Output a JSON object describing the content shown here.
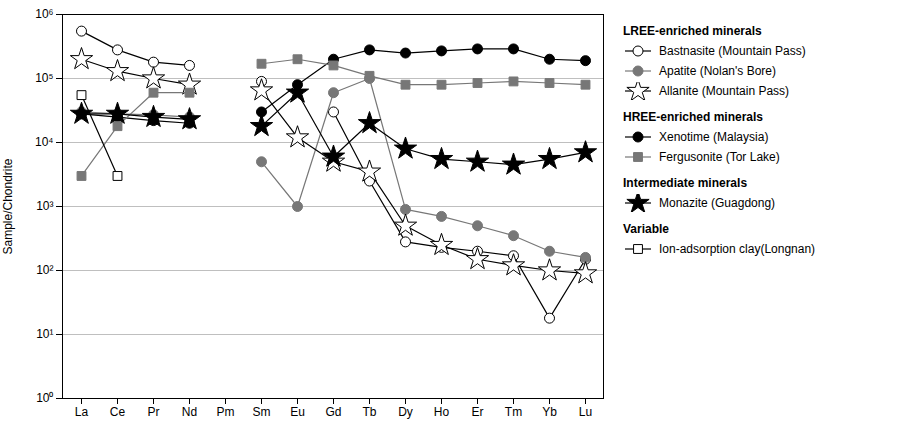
{
  "chart_data": {
    "type": "line",
    "categories": [
      "La",
      "Ce",
      "Pr",
      "Nd",
      "Pm",
      "Sm",
      "Eu",
      "Gd",
      "Tb",
      "Dy",
      "Ho",
      "Er",
      "Tm",
      "Yb",
      "Lu"
    ],
    "series": [
      {
        "name": "Bastnasite (Mountain Pass)",
        "color": "#000000",
        "marker": "circle-open",
        "values": [
          550000,
          280000,
          180000,
          160000,
          null,
          90000,
          null,
          30000,
          2500,
          280,
          230,
          200,
          170,
          18,
          150
        ]
      },
      {
        "name": "Apatite (Nolan's Bore)",
        "color": "#777777",
        "marker": "circle",
        "values": [
          30000,
          28000,
          27000,
          25000,
          null,
          5000,
          1000,
          60000,
          100000,
          900,
          700,
          500,
          350,
          200,
          160
        ]
      },
      {
        "name": "Allanite (Mountain Pass)",
        "color": "#000000",
        "marker": "star-open",
        "values": [
          200000,
          130000,
          100000,
          80000,
          null,
          65000,
          12000,
          5000,
          3500,
          500,
          250,
          150,
          120,
          100,
          90
        ]
      },
      {
        "name": "Xenotime (Malaysia)",
        "color": "#000000",
        "marker": "circle",
        "values": [
          28000,
          25000,
          22000,
          20000,
          null,
          30000,
          80000,
          200000,
          280000,
          250000,
          270000,
          290000,
          290000,
          200000,
          190000
        ]
      },
      {
        "name": "Fergusonite (Tor Lake)",
        "color": "#777777",
        "marker": "square",
        "values": [
          3000,
          18000,
          60000,
          60000,
          null,
          170000,
          200000,
          160000,
          110000,
          80000,
          80000,
          85000,
          90000,
          85000,
          80000
        ]
      },
      {
        "name": "Monazite (Guagdong)",
        "color": "#000000",
        "marker": "star",
        "values": [
          28000,
          28000,
          25000,
          23000,
          null,
          18000,
          60000,
          6000,
          20000,
          8000,
          5500,
          5000,
          4500,
          5500,
          7000
        ]
      },
      {
        "name": "Ion-adsorption clay(Longnan)",
        "color": "#000000",
        "marker": "square-open",
        "values": [
          55000,
          3000,
          null,
          null,
          null,
          null,
          null,
          null,
          null,
          null,
          null,
          null,
          null,
          null,
          null
        ]
      }
    ],
    "annotations": [
      {
        "text": "LREE-enriched minerals",
        "series": [
          "Bastnasite (Mountain Pass)",
          "Apatite (Nolan's Bore)",
          "Allanite (Mountain Pass)"
        ]
      },
      {
        "text": "HREE-enriched minerals",
        "series": [
          "Xenotime (Malaysia)",
          "Fergusonite (Tor Lake)"
        ]
      },
      {
        "text": "Intermediate minerals",
        "series": [
          "Monazite (Guagdong)"
        ]
      },
      {
        "text": "Variable",
        "series": [
          "Ion-adsorption clay(Longnan)"
        ]
      }
    ],
    "ylabel": "Sample/Chondrite",
    "log": "y",
    "ylim": [
      1,
      1000000
    ],
    "yticks": [
      {
        "value": 1,
        "label": "10⁰"
      },
      {
        "value": 10,
        "label": "10¹"
      },
      {
        "value": 100,
        "label": "10²"
      },
      {
        "value": 1000,
        "label": "10³"
      },
      {
        "value": 10000,
        "label": "10⁴"
      },
      {
        "value": 100000,
        "label": "10⁵"
      },
      {
        "value": 1000000,
        "label": "10⁶"
      }
    ],
    "grid": true
  }
}
